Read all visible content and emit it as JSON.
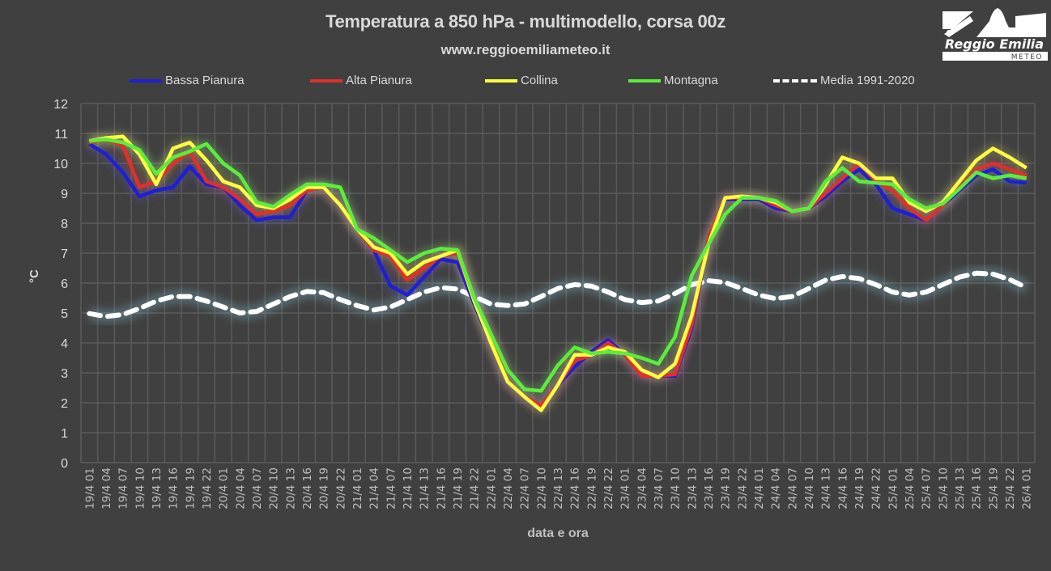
{
  "chart_data": {
    "type": "line",
    "title": "Temperatura a 850 hPa - multimodello, corsa 00z",
    "subtitle": "www.reggioemiliameteo.it",
    "xlabel": "data e ora",
    "ylabel": "°C",
    "ylim": [
      0,
      12
    ],
    "yticks": [
      0,
      1,
      2,
      3,
      4,
      5,
      6,
      7,
      8,
      9,
      10,
      11,
      12
    ],
    "grid": true,
    "legend_position": "top",
    "categories": [
      "19/4 01",
      "19/4 04",
      "19/4 07",
      "19/4 10",
      "19/4 13",
      "19/4 16",
      "19/4 19",
      "19/4 22",
      "20/4 01",
      "20/4 04",
      "20/4 07",
      "20/4 10",
      "20/4 13",
      "20/4 16",
      "20/4 19",
      "20/4 22",
      "21/4 01",
      "21/4 04",
      "21/4 07",
      "21/4 10",
      "21/4 13",
      "21/4 16",
      "21/4 19",
      "21/4 22",
      "22/4 01",
      "22/4 04",
      "22/4 07",
      "22/4 10",
      "22/4 13",
      "22/4 16",
      "22/4 19",
      "22/4 22",
      "23/4 01",
      "23/4 04",
      "23/4 07",
      "23/4 10",
      "23/4 13",
      "23/4 16",
      "23/4 19",
      "23/4 22",
      "24/4 01",
      "24/4 04",
      "24/4 07",
      "24/4 10",
      "24/4 13",
      "24/4 16",
      "24/4 19",
      "24/4 22",
      "25/4 01",
      "25/4 04",
      "25/4 07",
      "25/4 10",
      "25/4 13",
      "25/4 16",
      "25/4 19",
      "25/4 22",
      "26/4 01"
    ],
    "series": [
      {
        "name": "Bassa Pianura",
        "color": "#1f1fd6",
        "dashed": false,
        "values": [
          10.65,
          10.3,
          9.7,
          8.9,
          9.1,
          9.2,
          9.9,
          9.3,
          9.2,
          8.6,
          8.1,
          8.2,
          8.2,
          9.1,
          9.2,
          8.6,
          7.8,
          7.1,
          5.9,
          5.6,
          6.2,
          6.8,
          6.7,
          5.3,
          4.0,
          2.7,
          2.2,
          1.9,
          2.6,
          3.2,
          3.7,
          4.1,
          3.6,
          2.9,
          2.9,
          2.9,
          4.5,
          7.5,
          8.8,
          8.8,
          8.8,
          8.5,
          8.4,
          8.5,
          8.9,
          9.4,
          9.8,
          9.3,
          8.5,
          8.3,
          8.1,
          8.6,
          9.1,
          9.6,
          9.8,
          9.4,
          9.35
        ]
      },
      {
        "name": "Alta Pianura",
        "color": "#e0302a",
        "dashed": false,
        "values": [
          10.7,
          10.8,
          10.6,
          9.2,
          9.4,
          10.0,
          10.4,
          9.4,
          9.2,
          8.8,
          8.3,
          8.4,
          8.6,
          9.1,
          9.2,
          8.6,
          7.8,
          7.1,
          6.9,
          6.1,
          6.5,
          6.9,
          7.0,
          5.4,
          4.1,
          2.7,
          2.2,
          1.9,
          2.6,
          3.4,
          3.6,
          4.0,
          3.6,
          2.9,
          2.9,
          2.95,
          4.6,
          7.5,
          8.85,
          8.85,
          8.85,
          8.6,
          8.4,
          8.5,
          9.0,
          9.5,
          10.0,
          9.4,
          9.1,
          8.5,
          8.1,
          8.6,
          9.2,
          9.8,
          10.0,
          9.8,
          9.6
        ]
      },
      {
        "name": "Collina",
        "color": "#ffff40",
        "dashed": false,
        "values": [
          10.75,
          10.85,
          10.9,
          10.3,
          9.3,
          10.5,
          10.7,
          10.1,
          9.4,
          9.2,
          8.6,
          8.5,
          8.8,
          9.2,
          9.2,
          8.6,
          7.8,
          7.2,
          7.0,
          6.3,
          6.7,
          6.9,
          7.1,
          5.4,
          4.0,
          2.7,
          2.2,
          1.75,
          2.6,
          3.6,
          3.6,
          3.85,
          3.7,
          3.1,
          2.85,
          3.3,
          4.9,
          7.3,
          8.85,
          8.9,
          8.85,
          8.7,
          8.4,
          8.5,
          9.3,
          10.2,
          10.0,
          9.5,
          9.5,
          8.7,
          8.4,
          8.7,
          9.4,
          10.1,
          10.5,
          10.2,
          9.85
        ]
      },
      {
        "name": "Montagna",
        "color": "#5ced3a",
        "dashed": false,
        "values": [
          10.75,
          10.8,
          10.7,
          10.45,
          9.65,
          10.2,
          10.4,
          10.65,
          10.0,
          9.6,
          8.7,
          8.55,
          8.95,
          9.3,
          9.3,
          9.2,
          7.8,
          7.5,
          7.1,
          6.7,
          7.0,
          7.15,
          7.1,
          5.5,
          4.3,
          3.1,
          2.45,
          2.4,
          3.25,
          3.85,
          3.65,
          3.7,
          3.65,
          3.5,
          3.3,
          4.2,
          6.25,
          7.3,
          8.3,
          8.85,
          8.85,
          8.75,
          8.4,
          8.5,
          9.4,
          9.85,
          9.4,
          9.35,
          9.3,
          8.8,
          8.5,
          8.65,
          9.15,
          9.7,
          9.5,
          9.6,
          9.5
        ]
      },
      {
        "name": "Media 1991-2020",
        "color": "#ffffff",
        "dashed": true,
        "values": [
          4.98,
          4.88,
          4.95,
          5.15,
          5.4,
          5.55,
          5.55,
          5.4,
          5.2,
          5.0,
          5.05,
          5.3,
          5.55,
          5.72,
          5.68,
          5.45,
          5.25,
          5.1,
          5.2,
          5.45,
          5.7,
          5.85,
          5.8,
          5.55,
          5.3,
          5.25,
          5.3,
          5.55,
          5.82,
          5.95,
          5.9,
          5.7,
          5.45,
          5.35,
          5.4,
          5.65,
          5.95,
          6.08,
          6.02,
          5.82,
          5.6,
          5.48,
          5.55,
          5.82,
          6.1,
          6.22,
          6.15,
          5.95,
          5.7,
          5.6,
          5.7,
          5.95,
          6.2,
          6.33,
          6.3,
          6.12,
          5.85
        ]
      }
    ]
  },
  "logo": {
    "name": "Reggio Emilia",
    "sub": "METEO"
  }
}
